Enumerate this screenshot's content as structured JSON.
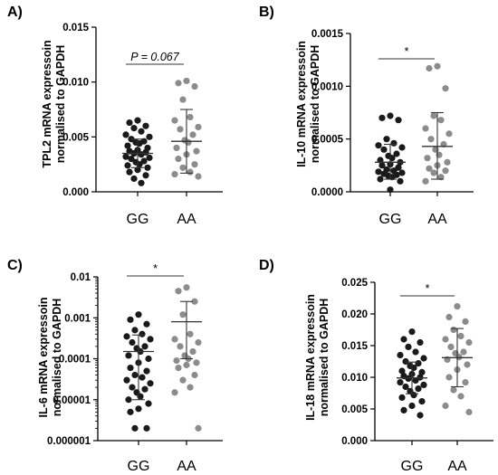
{
  "chart_data": [
    {
      "panel": "A)",
      "type": "scatter",
      "ylabel": [
        "TPL2 mRNA expressoin",
        "normalised to GAPDH"
      ],
      "scale": "linear",
      "ylim": [
        0,
        0.015
      ],
      "yticks": [
        0,
        0.005,
        0.01,
        0.015
      ],
      "ytick_labels": [
        "0.000",
        "0.005",
        "0.010",
        "0.015"
      ],
      "categories": [
        "GG",
        "AA"
      ],
      "colors": [
        "#1a1a1a",
        "#8c8c8c"
      ],
      "significance": "P = 0.067",
      "significance_italic": true,
      "groups": [
        {
          "name": "GG",
          "mean": 0.0035,
          "sd_low": 0.0022,
          "sd_high": 0.0048,
          "values": [
            0.0065,
            0.0063,
            0.006,
            0.0058,
            0.0055,
            0.0052,
            0.005,
            0.0048,
            0.0046,
            0.0045,
            0.0044,
            0.0042,
            0.004,
            0.0038,
            0.0037,
            0.0036,
            0.0035,
            0.0034,
            0.0032,
            0.0031,
            0.003,
            0.0028,
            0.0027,
            0.0025,
            0.0024,
            0.0022,
            0.002,
            0.0018,
            0.0015,
            0.0012,
            0.0008
          ]
        },
        {
          "name": "AA",
          "mean": 0.0046,
          "sd_low": 0.0017,
          "sd_high": 0.0075,
          "values": [
            0.0101,
            0.0099,
            0.0096,
            0.0084,
            0.0068,
            0.0065,
            0.0059,
            0.0057,
            0.0052,
            0.0047,
            0.0045,
            0.004,
            0.0037,
            0.0034,
            0.003,
            0.0025,
            0.0022,
            0.0018,
            0.0016,
            0.0014
          ]
        }
      ]
    },
    {
      "panel": "B)",
      "type": "scatter",
      "ylabel": [
        "IL-10 mRNA expressoin",
        "normalised to GAPDH"
      ],
      "scale": "linear",
      "ylim": [
        0,
        0.0015
      ],
      "yticks": [
        0,
        0.0005,
        0.001,
        0.0015
      ],
      "ytick_labels": [
        "0.0000",
        "0.0005",
        "0.0010",
        "0.0015"
      ],
      "categories": [
        "GG",
        "AA"
      ],
      "colors": [
        "#1a1a1a",
        "#8c8c8c"
      ],
      "significance": "*",
      "significance_italic": false,
      "groups": [
        {
          "name": "GG",
          "mean": 0.00028,
          "sd_low": 0.00012,
          "sd_high": 0.00045,
          "values": [
            0.00072,
            0.0007,
            0.00068,
            0.0005,
            0.00046,
            0.00044,
            0.00042,
            0.0004,
            0.00036,
            0.00034,
            0.00032,
            0.0003,
            0.00028,
            0.00026,
            0.00025,
            0.00023,
            0.00021,
            0.0002,
            0.00019,
            0.00018,
            0.00017,
            0.00016,
            0.00015,
            0.00014,
            0.00012,
            0.0001,
            2e-05
          ]
        },
        {
          "name": "AA",
          "mean": 0.00043,
          "sd_low": 0.00012,
          "sd_high": 0.00075,
          "values": [
            0.00119,
            0.00117,
            0.00098,
            0.00072,
            0.00068,
            0.0006,
            0.00055,
            0.0005,
            0.00045,
            0.0004,
            0.00035,
            0.00032,
            0.00028,
            0.00025,
            0.00022,
            0.0002,
            0.00018,
            0.00014,
            0.0001
          ]
        }
      ]
    },
    {
      "panel": "C)",
      "type": "scatter",
      "ylabel": [
        "IL-6 mRNA expressoin",
        "normalised to GAPDH"
      ],
      "scale": "log",
      "ylim": [
        1e-06,
        0.01
      ],
      "yticks": [
        1e-06,
        1e-05,
        0.0001,
        0.001,
        0.01
      ],
      "ytick_labels": [
        "0.000001",
        "0.00001",
        "0.0001",
        "0.001",
        "0.01"
      ],
      "categories": [
        "GG",
        "AA"
      ],
      "colors": [
        "#1a1a1a",
        "#8c8c8c"
      ],
      "significance": "*",
      "significance_italic": false,
      "groups": [
        {
          "name": "GG",
          "mean": 0.00015,
          "sd_low": 1e-05,
          "sd_high": 0.00038,
          "values": [
            0.0012,
            0.0009,
            0.0007,
            0.0005,
            0.0004,
            0.00035,
            0.0003,
            0.00025,
            0.0002,
            0.00018,
            0.00015,
            0.00012,
            0.0001,
            8e-05,
            6e-05,
            5e-05,
            4e-05,
            3.5e-05,
            3e-05,
            2.5e-05,
            2e-05,
            1.8e-05,
            1.5e-05,
            1.2e-05,
            1e-05,
            8e-06,
            6e-06,
            5e-06,
            2e-06,
            2e-06
          ]
        },
        {
          "name": "AA",
          "mean": 0.0008,
          "sd_low": 0.0001,
          "sd_high": 0.0025,
          "values": [
            0.0055,
            0.0045,
            0.0025,
            0.0012,
            0.0004,
            0.0003,
            0.00025,
            0.0002,
            0.00015,
            0.00012,
            0.0001,
            9e-05,
            8e-05,
            7e-05,
            6e-05,
            4e-05,
            3e-05,
            2e-05,
            1.5e-05,
            2e-06
          ]
        }
      ]
    },
    {
      "panel": "D)",
      "type": "scatter",
      "ylabel": [
        "IL-18 mRNA expressoin",
        "normalised to GAPDH"
      ],
      "scale": "linear",
      "ylim": [
        0,
        0.025
      ],
      "yticks": [
        0,
        0.005,
        0.01,
        0.015,
        0.02,
        0.025
      ],
      "ytick_labels": [
        "0.000",
        "0.005",
        "0.010",
        "0.015",
        "0.020",
        "0.025"
      ],
      "categories": [
        "GG",
        "AA"
      ],
      "colors": [
        "#1a1a1a",
        "#8c8c8c"
      ],
      "significance": "*",
      "significance_italic": false,
      "groups": [
        {
          "name": "GG",
          "mean": 0.0099,
          "sd_low": 0.0074,
          "sd_high": 0.0124,
          "values": [
            0.0172,
            0.016,
            0.0155,
            0.0148,
            0.014,
            0.0135,
            0.013,
            0.0125,
            0.0122,
            0.0118,
            0.0115,
            0.011,
            0.0108,
            0.0105,
            0.0102,
            0.01,
            0.0098,
            0.0095,
            0.0092,
            0.0088,
            0.0085,
            0.0082,
            0.0078,
            0.0072,
            0.0068,
            0.0062,
            0.0055,
            0.0048,
            0.004
          ]
        },
        {
          "name": "AA",
          "mean": 0.0131,
          "sd_low": 0.0085,
          "sd_high": 0.0177,
          "values": [
            0.0212,
            0.0195,
            0.0188,
            0.0175,
            0.0165,
            0.016,
            0.0155,
            0.0148,
            0.014,
            0.0138,
            0.0132,
            0.0128,
            0.012,
            0.0112,
            0.01,
            0.0092,
            0.008,
            0.007,
            0.0055,
            0.0045
          ]
        }
      ]
    }
  ]
}
